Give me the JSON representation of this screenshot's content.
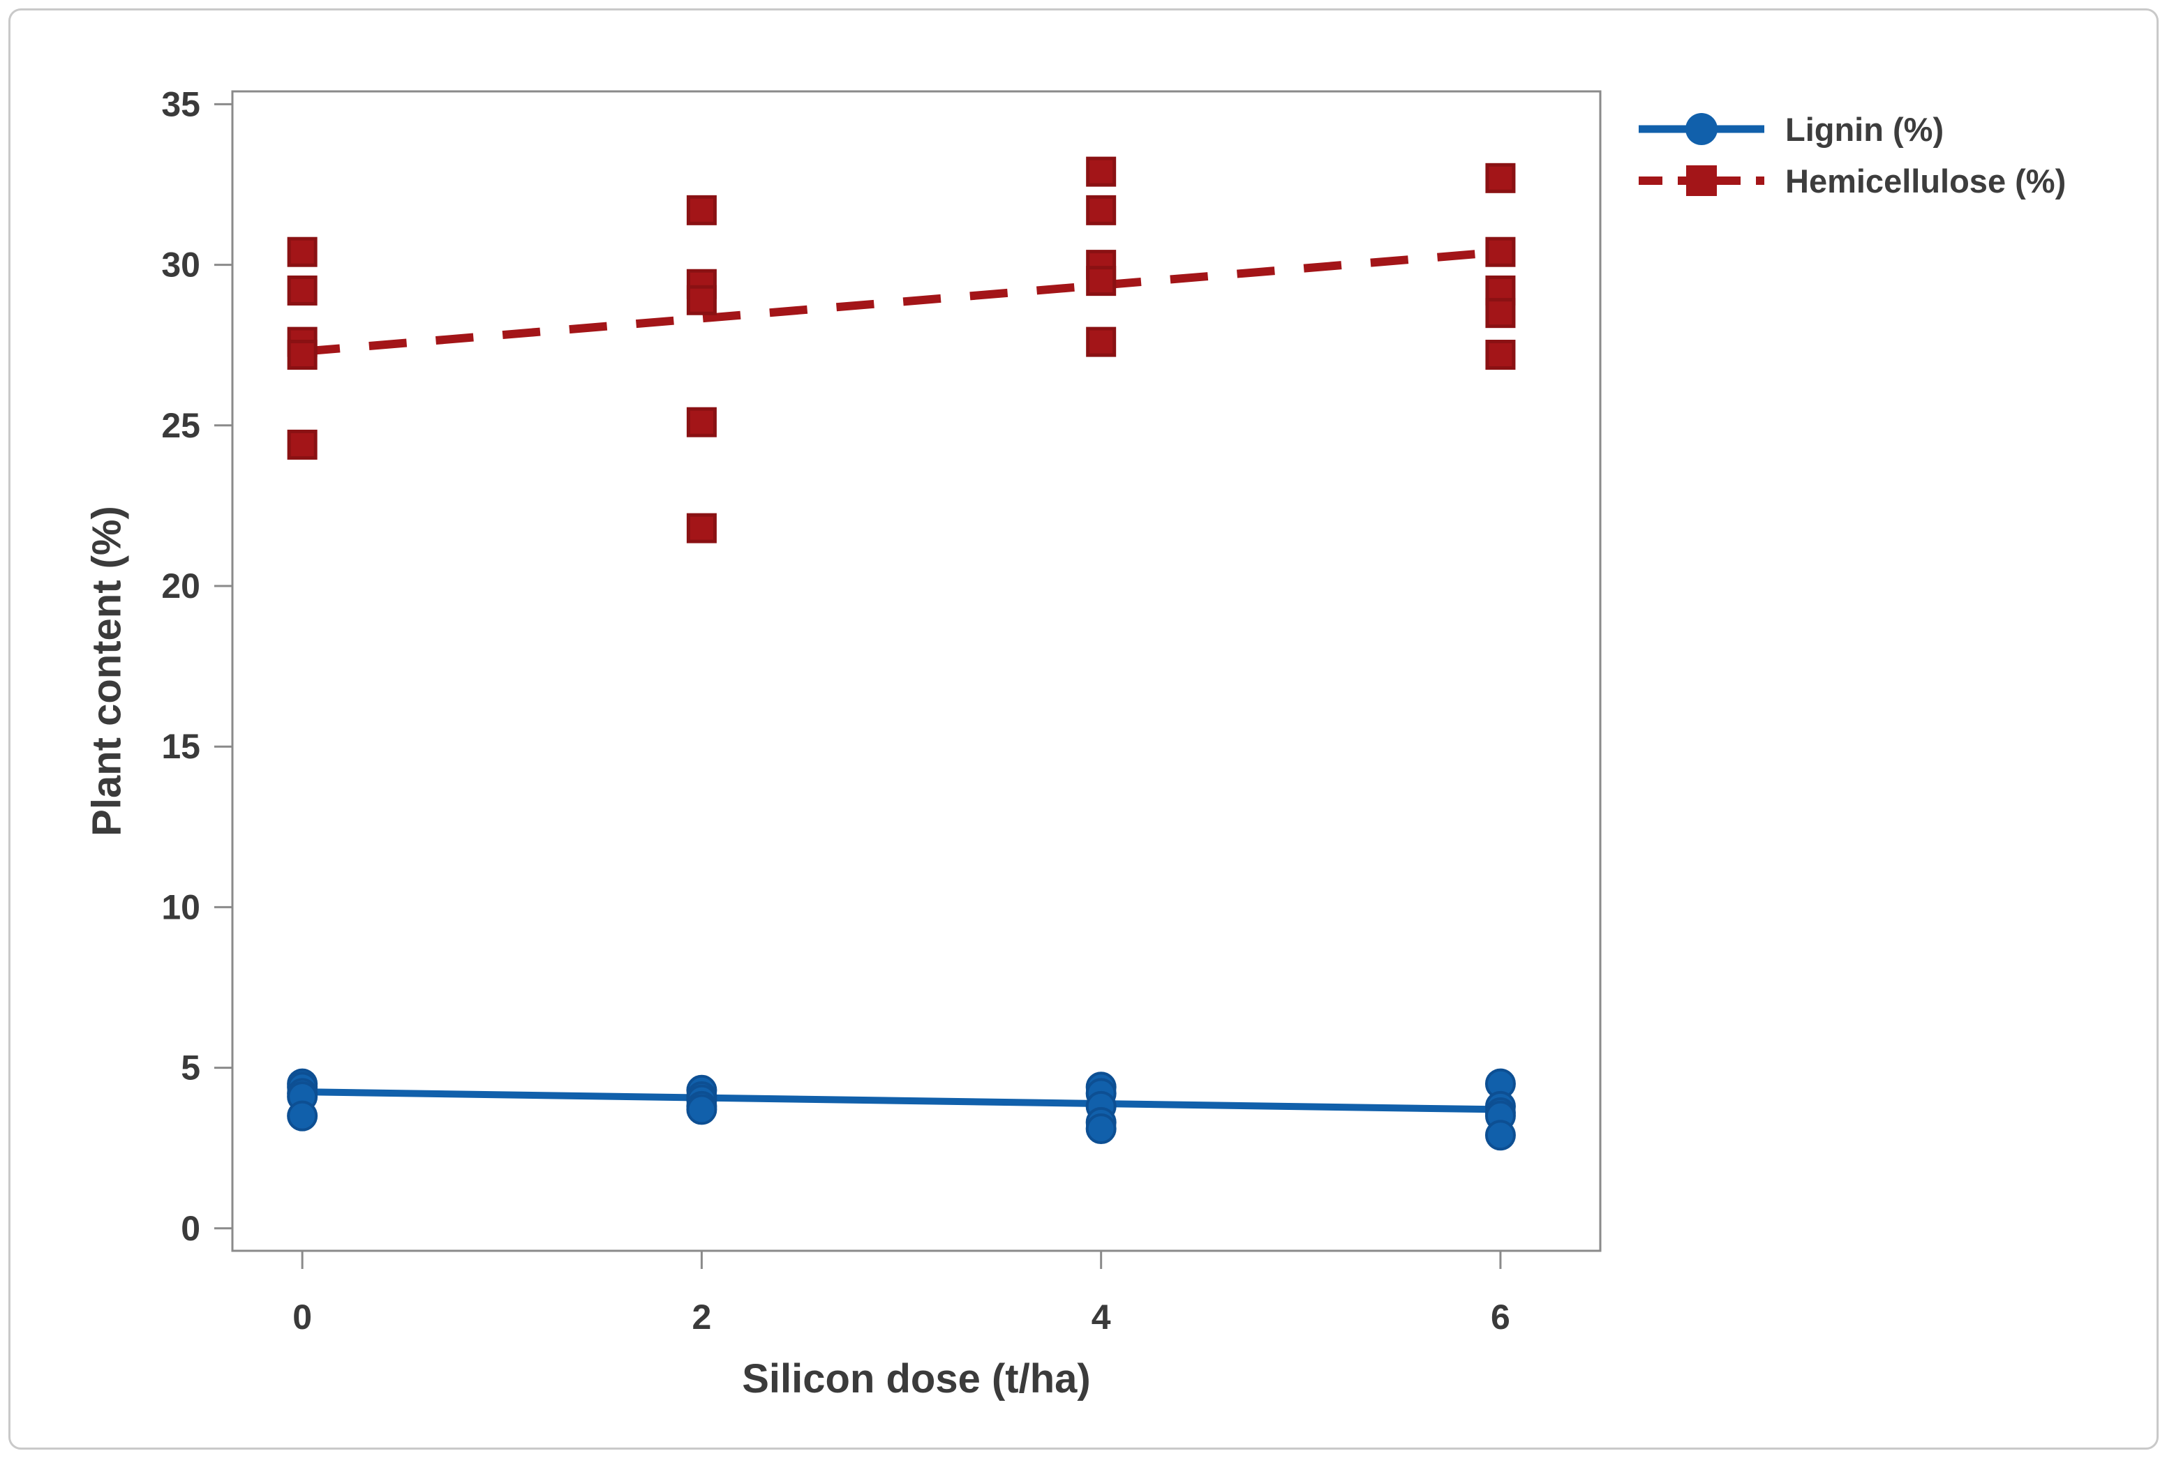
{
  "chart_data": {
    "type": "scatter",
    "title": "",
    "xlabel": "Silicon dose (t/ha)",
    "ylabel": "Plant content (%)",
    "x_ticks": [
      0,
      2,
      4,
      6
    ],
    "y_ticks": [
      0,
      5,
      10,
      15,
      20,
      25,
      30,
      35
    ],
    "xlim": [
      -0.35,
      6.5
    ],
    "ylim": [
      -0.7,
      35.4
    ],
    "grid": false,
    "legend_position": "top-right-outside",
    "frame_color": "#8a8a8a",
    "tick_text_color": "#3a3a3a",
    "series": [
      {
        "name": "Lignin (%)",
        "marker": "circle",
        "line_style": "solid",
        "color": "#1160ab",
        "marker_edge": "#0d4f93",
        "points": [
          [
            0,
            4.5
          ],
          [
            0,
            4.4
          ],
          [
            0,
            4.2
          ],
          [
            0,
            4.1
          ],
          [
            0,
            3.5
          ],
          [
            2,
            4.3
          ],
          [
            2,
            4.1
          ],
          [
            2,
            4.0
          ],
          [
            2,
            3.8
          ],
          [
            2,
            3.7
          ],
          [
            4,
            4.4
          ],
          [
            4,
            4.2
          ],
          [
            4,
            3.8
          ],
          [
            4,
            3.3
          ],
          [
            4,
            3.1
          ],
          [
            6,
            4.5
          ],
          [
            6,
            3.8
          ],
          [
            6,
            3.6
          ],
          [
            6,
            3.5
          ],
          [
            6,
            2.9
          ]
        ],
        "trend": {
          "x1": 0,
          "y1": 4.25,
          "x2": 6,
          "y2": 3.7
        }
      },
      {
        "name": "Hemicellulose (%)",
        "marker": "square",
        "line_style": "dashed",
        "color": "#a31518",
        "marker_edge": "#8a1113",
        "points": [
          [
            0,
            30.4
          ],
          [
            0,
            29.2
          ],
          [
            0,
            27.6
          ],
          [
            0,
            27.2
          ],
          [
            0,
            24.4
          ],
          [
            2,
            31.7
          ],
          [
            2,
            29.4
          ],
          [
            2,
            28.9
          ],
          [
            2,
            25.1
          ],
          [
            2,
            21.8
          ],
          [
            4,
            32.9
          ],
          [
            4,
            31.7
          ],
          [
            4,
            30.0
          ],
          [
            4,
            29.5
          ],
          [
            4,
            27.6
          ],
          [
            6,
            32.7
          ],
          [
            6,
            30.4
          ],
          [
            6,
            29.2
          ],
          [
            6,
            28.5
          ],
          [
            6,
            27.2
          ]
        ],
        "trend": {
          "x1": 0,
          "y1": 27.3,
          "x2": 6,
          "y2": 30.4
        }
      }
    ]
  }
}
